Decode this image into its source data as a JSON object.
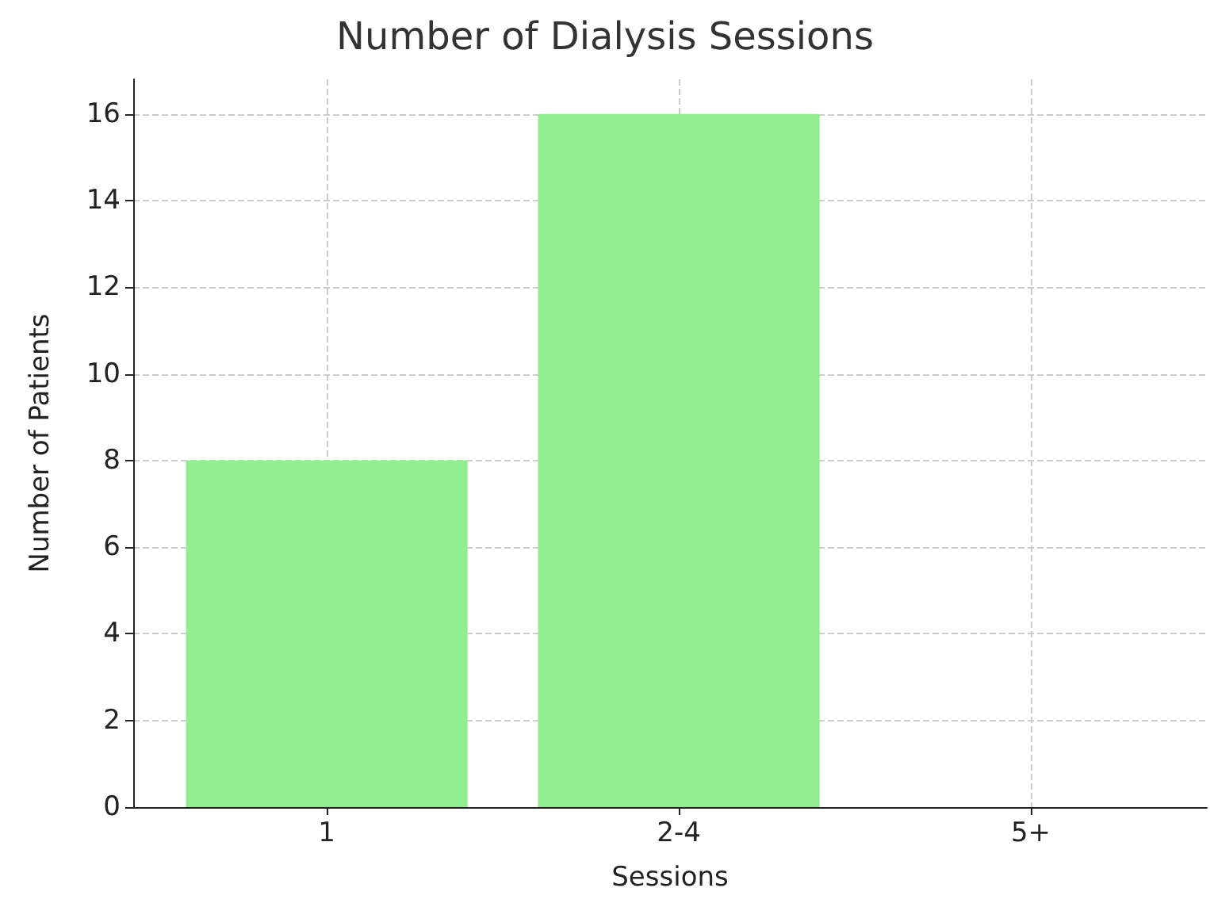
{
  "chart_data": {
    "type": "bar",
    "title": "Number of Dialysis Sessions",
    "xlabel": "Sessions",
    "ylabel": "Number of Patients",
    "categories": [
      "1",
      "2-4",
      "5+"
    ],
    "values": [
      8,
      16,
      0
    ],
    "color": "#90ee90",
    "ylim": [
      0,
      16.8
    ],
    "yticks": [
      0,
      2,
      4,
      6,
      8,
      10,
      12,
      14,
      16
    ],
    "grid": true
  }
}
